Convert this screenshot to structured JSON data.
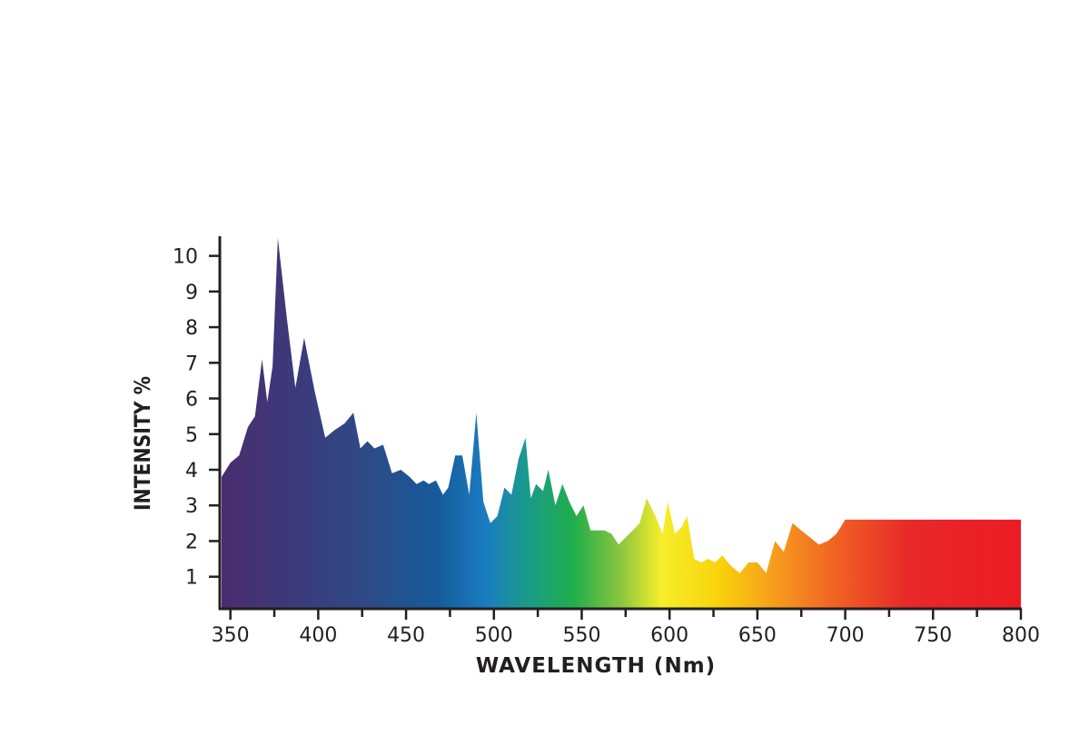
{
  "chart_data": {
    "type": "area",
    "title": "",
    "xlabel": "WAVELENGTH (Nm)",
    "ylabel": "INTENSITY %",
    "xlim": [
      345,
      800
    ],
    "ylim": [
      0.1,
      10.5
    ],
    "xticks": [
      350,
      400,
      450,
      500,
      550,
      600,
      650,
      700,
      750,
      800
    ],
    "yticks": [
      1,
      2,
      3,
      4,
      5,
      6,
      7,
      8,
      9,
      10
    ],
    "grid": false,
    "fill": "visible-spectrum gradient (violet to red)",
    "series": [
      {
        "x": [
          345,
          350,
          355,
          360,
          364,
          368,
          371,
          374,
          377,
          382,
          387,
          392,
          398,
          404,
          409,
          415,
          420,
          424,
          428,
          432,
          437,
          442,
          447,
          452,
          456,
          460,
          463,
          467,
          471,
          474,
          478,
          482,
          486,
          490,
          494,
          498,
          502,
          506,
          510,
          514,
          518,
          521,
          524,
          528,
          531,
          535,
          539,
          543,
          547,
          551,
          555,
          559,
          563,
          567,
          571,
          575,
          579,
          583,
          587,
          592,
          596,
          599,
          603,
          607,
          610,
          614,
          618,
          622,
          626,
          630,
          635,
          640,
          645,
          650,
          655,
          660,
          665,
          670,
          675,
          680,
          685,
          690,
          695,
          700,
          705,
          710,
          715,
          720,
          725,
          730,
          735,
          740,
          745,
          750,
          755,
          760,
          765,
          770,
          775,
          780,
          785,
          790,
          795,
          800
        ],
        "values": [
          3.8,
          4.2,
          4.4,
          5.2,
          5.5,
          7.1,
          5.9,
          6.9,
          10.5,
          8.3,
          6.3,
          7.7,
          6.2,
          4.9,
          5.1,
          5.3,
          5.6,
          4.6,
          4.8,
          4.6,
          4.7,
          3.9,
          4.0,
          3.8,
          3.6,
          3.7,
          3.6,
          3.7,
          3.3,
          3.5,
          4.4,
          4.4,
          3.3,
          5.6,
          3.1,
          2.5,
          2.7,
          3.5,
          3.3,
          4.3,
          4.9,
          3.2,
          3.6,
          3.4,
          4.0,
          3.0,
          3.6,
          3.1,
          2.7,
          3.0,
          2.3,
          2.3,
          2.3,
          2.2,
          1.9,
          2.1,
          2.3,
          2.5,
          3.2,
          2.7,
          2.2,
          3.1,
          2.2,
          2.4,
          2.7,
          1.5,
          1.4,
          1.5,
          1.4,
          1.6,
          1.3,
          1.1,
          1.4,
          1.4,
          1.1,
          2.0,
          1.7,
          2.5,
          2.3,
          2.1,
          1.9,
          2.0,
          2.2,
          2.6,
          2.6,
          2.6,
          2.6,
          2.6,
          2.6,
          2.6,
          2.6,
          2.6,
          2.6,
          2.6,
          2.6,
          2.6,
          2.6,
          2.6,
          2.6,
          2.6,
          2.6,
          2.6,
          2.6,
          2.6
        ]
      }
    ]
  }
}
